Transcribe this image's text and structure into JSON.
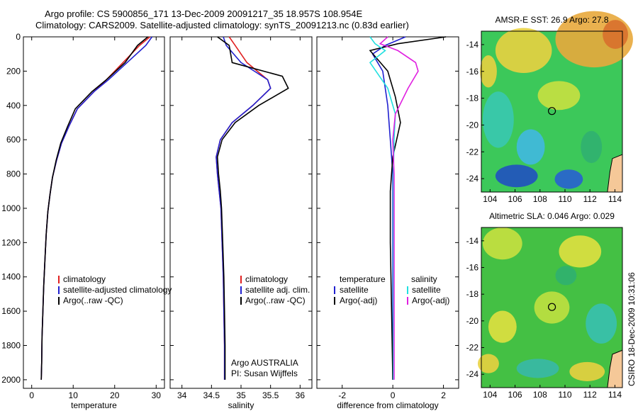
{
  "header": {
    "line1": "Argo profile: CS 5900856_171 13-Dec-2009 20091217_35 18.957S 108.954E",
    "line2": "Climatology: CARS2009. Satellite-adjusted climatology: synTS_20091213.nc (0.83d earlier)"
  },
  "side_label": "CSIRO 18-Dec-2009 10:31:06",
  "colors": {
    "climatology": "#e02020",
    "satellite": "#2020d0",
    "argo": "#000000",
    "sal_sat": "#20e0e0",
    "sal_argo": "#e020e0"
  },
  "chart_data": [
    {
      "type": "line",
      "xlabel": "temperature",
      "xlim": [
        -2,
        32
      ],
      "ylim": [
        0,
        2050
      ],
      "y_ticks": [
        "0",
        "200",
        "400",
        "600",
        "800",
        "1000",
        "1200",
        "1400",
        "1600",
        "1800",
        "2000"
      ],
      "x_ticks": [
        "0",
        "10",
        "20",
        "30"
      ],
      "legend": [
        "climatology",
        "satellite-adjusted climatology",
        "Argo(..raw -QC)"
      ],
      "series": [
        {
          "name": "climatology",
          "x": [
            28.5,
            26,
            22,
            18,
            15,
            11,
            9,
            7.2,
            6,
            5,
            4.4,
            3.9,
            3.5,
            3.2,
            2.9,
            2.7,
            2.5,
            2.4,
            2.3
          ],
          "y": [
            0,
            50,
            150,
            250,
            320,
            420,
            520,
            620,
            720,
            820,
            920,
            1020,
            1150,
            1300,
            1450,
            1600,
            1750,
            1900,
            2000
          ]
        },
        {
          "name": "satellite-adjusted climatology",
          "x": [
            29,
            27.5,
            23,
            18.5,
            15,
            11,
            9,
            7.2,
            6,
            5,
            4.4,
            3.9,
            3.5,
            3.2,
            2.9,
            2.7,
            2.5,
            2.4,
            2.3
          ],
          "y": [
            0,
            50,
            150,
            250,
            320,
            420,
            520,
            620,
            720,
            820,
            920,
            1020,
            1150,
            1300,
            1450,
            1600,
            1750,
            1900,
            2000
          ]
        },
        {
          "name": "Argo(..raw -QC)",
          "x": [
            28,
            25.5,
            22.5,
            18,
            14.5,
            10.5,
            8.7,
            7,
            5.9,
            5,
            4.4,
            3.9,
            3.5,
            3.2,
            2.9,
            2.7,
            2.5,
            2.4,
            2.3
          ],
          "y": [
            0,
            50,
            150,
            250,
            320,
            420,
            520,
            620,
            720,
            820,
            920,
            1020,
            1150,
            1300,
            1450,
            1600,
            1750,
            1900,
            2000
          ]
        }
      ]
    },
    {
      "type": "line",
      "xlabel": "salinity",
      "xlim": [
        33.8,
        36.2
      ],
      "ylim": [
        0,
        2050
      ],
      "x_ticks": [
        "34",
        "34.5",
        "35",
        "35.5",
        "36"
      ],
      "legend": [
        "climatology",
        "satellite adj. clim.",
        "Argo(..raw -QC)"
      ],
      "annotations": [
        "Argo AUSTRALIA",
        "PI: Susan Wijffels"
      ],
      "series": [
        {
          "name": "climatology",
          "x": [
            34.8,
            34.9,
            35.1,
            35.45,
            35.5,
            35.2,
            34.85,
            34.65,
            34.58,
            34.6,
            34.63,
            34.66,
            34.68,
            34.7,
            34.71,
            34.72,
            34.72
          ],
          "y": [
            0,
            50,
            150,
            250,
            300,
            400,
            500,
            600,
            700,
            800,
            900,
            1000,
            1200,
            1400,
            1600,
            1800,
            2000
          ]
        },
        {
          "name": "satellite adj. clim.",
          "x": [
            34.7,
            34.75,
            35.0,
            35.45,
            35.5,
            35.2,
            34.85,
            34.65,
            34.58,
            34.6,
            34.63,
            34.66,
            34.68,
            34.7,
            34.71,
            34.72,
            34.72
          ],
          "y": [
            0,
            50,
            150,
            250,
            300,
            400,
            500,
            600,
            700,
            800,
            900,
            1000,
            1200,
            1400,
            1600,
            1800,
            2000
          ]
        },
        {
          "name": "Argo(..raw -QC)",
          "x": [
            34.6,
            34.8,
            34.85,
            35.7,
            35.8,
            35.3,
            34.9,
            34.68,
            34.6,
            34.62,
            34.65,
            34.67,
            34.69,
            34.71,
            34.72,
            34.73,
            34.73
          ],
          "y": [
            0,
            50,
            150,
            230,
            300,
            400,
            500,
            600,
            700,
            800,
            900,
            1000,
            1200,
            1400,
            1600,
            1800,
            2000
          ]
        }
      ]
    },
    {
      "type": "line",
      "xlabel": "difference from climatology",
      "xlim": [
        -3,
        2.6
      ],
      "ylim": [
        0,
        2050
      ],
      "x_ticks": [
        "-2",
        "0",
        "2"
      ],
      "legend_left": {
        "title": "temperature",
        "items": [
          "satellite",
          "Argo(-adj)"
        ]
      },
      "legend_right": {
        "title": "salinity",
        "items": [
          "satellite",
          "Argo(-adj)"
        ]
      },
      "series": [
        {
          "name": "temperature satellite",
          "x": [
            0.5,
            -0.3,
            -0.8,
            -0.4,
            -0.2,
            -0.1,
            0,
            0,
            0,
            0
          ],
          "y": [
            0,
            50,
            100,
            200,
            400,
            600,
            800,
            1200,
            1600,
            2000
          ]
        },
        {
          "name": "temperature Argo(-adj)",
          "x": [
            2.1,
            0.2,
            -0.9,
            -0.2,
            0.1,
            0.3,
            0,
            -0.1,
            -0.1,
            -0.05,
            0
          ],
          "y": [
            0,
            40,
            80,
            200,
            350,
            500,
            700,
            900,
            1200,
            1600,
            2000
          ]
        },
        {
          "name": "salinity satellite",
          "x": [
            -0.9,
            -0.7,
            -0.3,
            -0.9,
            -0.2,
            0.1,
            0.05,
            0.02,
            0.02,
            0.02
          ],
          "y": [
            0,
            40,
            80,
            150,
            300,
            450,
            600,
            800,
            1200,
            2000
          ]
        },
        {
          "name": "salinity Argo(-adj)",
          "x": [
            -0.2,
            -0.5,
            0.2,
            0.9,
            1.0,
            0.6,
            0.1,
            0,
            0.05,
            0.05,
            0.05
          ],
          "y": [
            0,
            40,
            80,
            150,
            200,
            300,
            450,
            600,
            800,
            1200,
            2000
          ]
        }
      ]
    },
    {
      "type": "heatmap",
      "title": "AMSR-E SST: 26.9 Argo: 27.8",
      "x_ticks": [
        "104",
        "106",
        "108",
        "110",
        "112",
        "114"
      ],
      "y_ticks": [
        "-14",
        "-16",
        "-18",
        "-20",
        "-22",
        "-24"
      ],
      "marker": {
        "lon": 108.954,
        "lat": -18.957
      }
    },
    {
      "type": "heatmap",
      "title": "Altimetric SLA: 0.046 Argo: 0.029",
      "x_ticks": [
        "104",
        "106",
        "108",
        "110",
        "112",
        "114"
      ],
      "y_ticks": [
        "-14",
        "-16",
        "-18",
        "-20",
        "-22",
        "-24"
      ],
      "marker": {
        "lon": 108.954,
        "lat": -18.957
      }
    }
  ]
}
